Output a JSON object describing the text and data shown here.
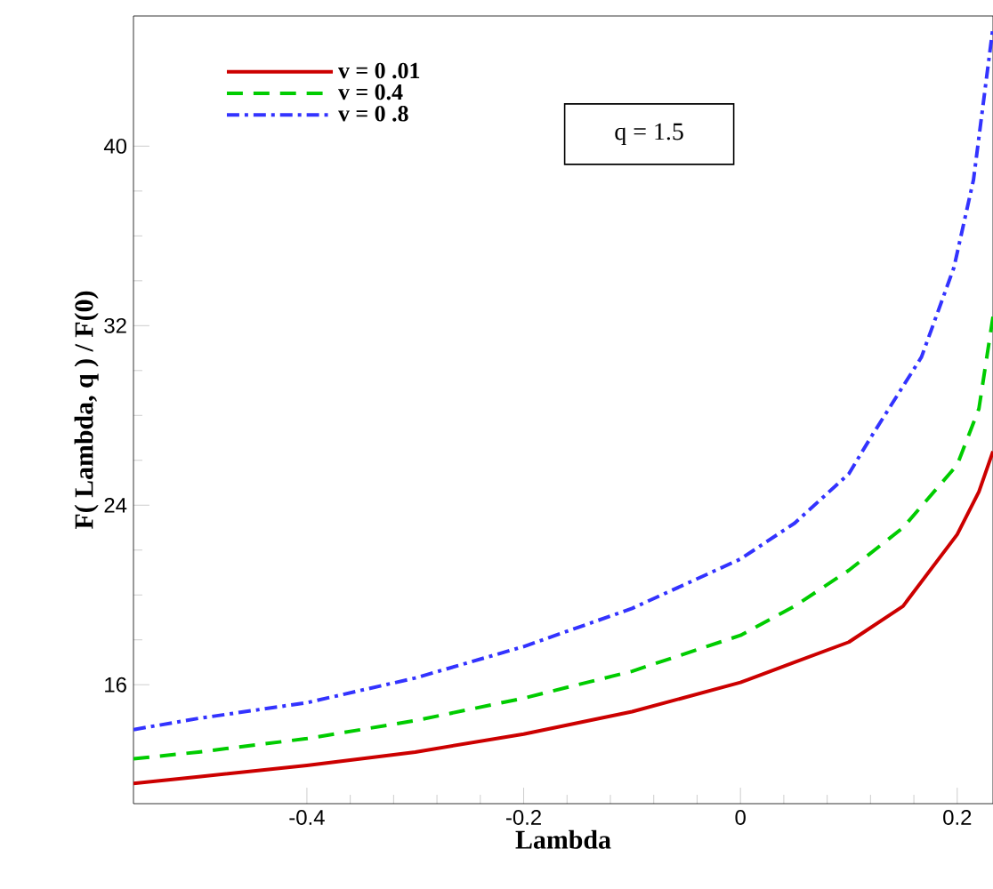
{
  "chart_data": {
    "type": "line",
    "xlabel": "Lambda",
    "ylabel": "F( Lambda, q ) / F(0)",
    "annotations": [
      "q = 1.5"
    ],
    "xlim": [
      -0.56,
      0.233
    ],
    "ylim": [
      10.7,
      45.8
    ],
    "xticks": [
      -0.4,
      -0.2,
      0,
      0.2
    ],
    "yticks": [
      16,
      24,
      32,
      40
    ],
    "legend": "top left",
    "grid": false,
    "series": [
      {
        "name": "v = 0 .01",
        "color": "#cc0000",
        "line_style": "solid",
        "x": [
          -0.56,
          -0.5,
          -0.4,
          -0.3,
          -0.2,
          -0.1,
          0,
          0.05,
          0.1,
          0.15,
          0.2,
          0.22,
          0.233
        ],
        "values": [
          11.6,
          11.9,
          12.4,
          13.0,
          13.8,
          14.8,
          16.1,
          17.0,
          17.9,
          19.5,
          22.7,
          24.6,
          26.4
        ]
      },
      {
        "name": "v = 0.4",
        "color": "#00cc00",
        "line_style": "dashed",
        "x": [
          -0.56,
          -0.5,
          -0.4,
          -0.3,
          -0.2,
          -0.1,
          0,
          0.05,
          0.1,
          0.15,
          0.2,
          0.22,
          0.233
        ],
        "values": [
          12.7,
          13.0,
          13.6,
          14.4,
          15.4,
          16.6,
          18.2,
          19.5,
          21.1,
          23.0,
          25.8,
          28.3,
          32.4
        ]
      },
      {
        "name": "v = 0 .8",
        "color": "#3333ff",
        "line_style": "dashdot",
        "x": [
          -0.56,
          -0.5,
          -0.4,
          -0.3,
          -0.2,
          -0.1,
          0,
          0.05,
          0.1,
          0.12,
          0.15,
          0.167,
          0.197,
          0.215,
          0.233
        ],
        "values": [
          14.0,
          14.5,
          15.2,
          16.3,
          17.7,
          19.4,
          21.6,
          23.2,
          25.4,
          27.0,
          29.3,
          30.6,
          34.6,
          38.5,
          45.3
        ]
      }
    ]
  }
}
